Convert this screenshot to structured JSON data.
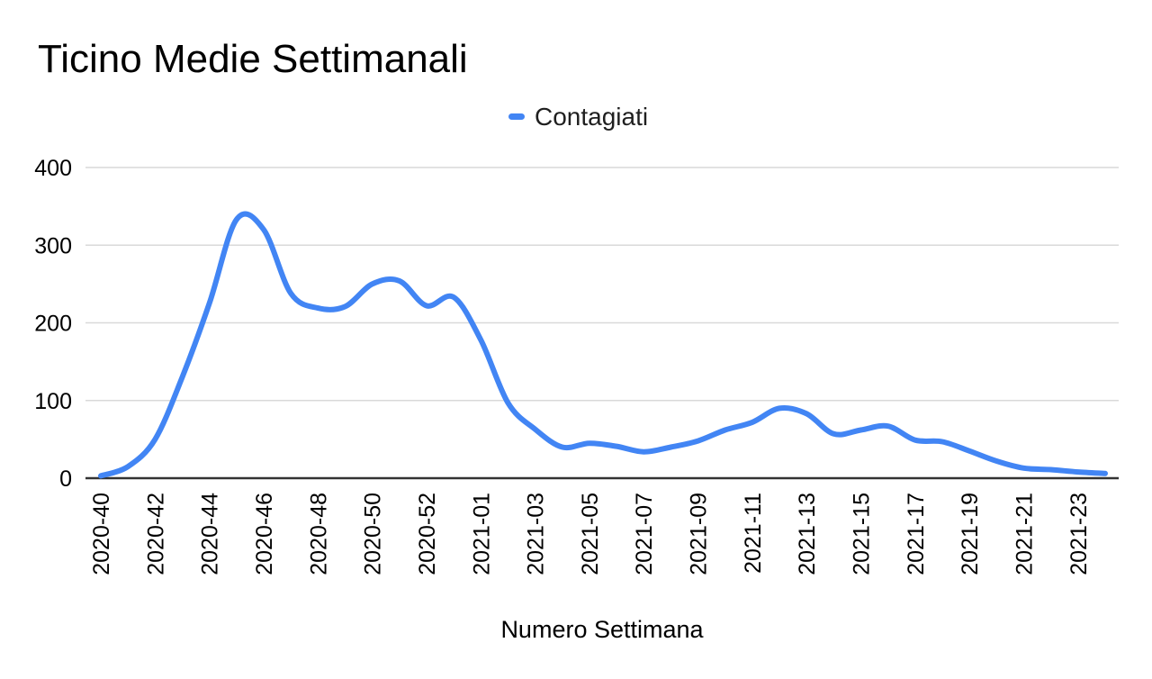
{
  "title": "Ticino Medie Settimanali",
  "legend": {
    "items": [
      {
        "label": "Contagiati",
        "color": "#4285f4"
      }
    ]
  },
  "colors": {
    "line": "#4285f4",
    "gridline": "#d9d9d9",
    "axis_line": "#333333",
    "text": "#000000",
    "background": "#ffffff"
  },
  "chart_data": {
    "type": "line",
    "title": "Ticino Medie Settimanali",
    "xlabel": "Numero Settimana",
    "ylabel": "",
    "ylim": [
      0,
      400
    ],
    "yticks": [
      0,
      100,
      200,
      300,
      400
    ],
    "grid": true,
    "legend_position": "top-center",
    "x_tick_every": 2,
    "categories": [
      "2020-40",
      "2020-41",
      "2020-42",
      "2020-43",
      "2020-44",
      "2020-45",
      "2020-46",
      "2020-47",
      "2020-48",
      "2020-49",
      "2020-50",
      "2020-51",
      "2020-52",
      "2020-53",
      "2021-01",
      "2021-02",
      "2021-03",
      "2021-04",
      "2021-05",
      "2021-06",
      "2021-07",
      "2021-08",
      "2021-09",
      "2021-10",
      "2021-11",
      "2021-12",
      "2021-13",
      "2021-14",
      "2021-15",
      "2021-16",
      "2021-17",
      "2021-18",
      "2021-19",
      "2021-20",
      "2021-21",
      "2021-22",
      "2021-23",
      "2021-24"
    ],
    "series": [
      {
        "name": "Contagiati",
        "color": "#4285f4",
        "values": [
          3,
          15,
          50,
          130,
          225,
          333,
          320,
          238,
          219,
          221,
          250,
          254,
          222,
          233,
          178,
          97,
          63,
          40,
          45,
          41,
          34,
          40,
          48,
          62,
          72,
          90,
          83,
          57,
          62,
          67,
          49,
          47,
          35,
          22,
          13,
          11,
          8,
          6
        ]
      }
    ]
  }
}
